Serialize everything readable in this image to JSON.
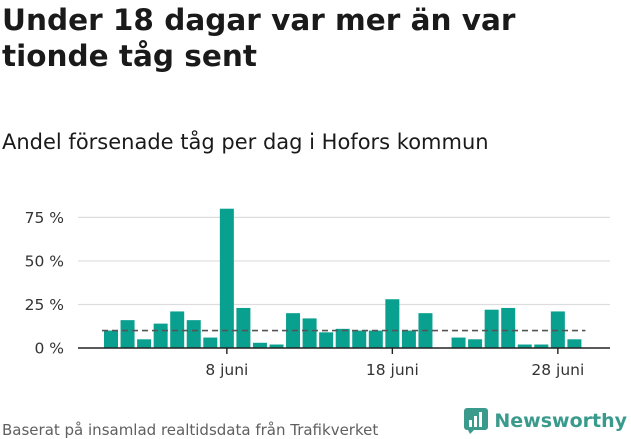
{
  "title": "Under 18 dagar var mer än var tionde tåg sent",
  "subtitle": "Andel försenade tåg per dag i Hofors kommun",
  "source": "Baserat på insamlad realtidsdata från Trafikverket",
  "logo": {
    "text": "Newsworthy",
    "color": "#3a9a8c"
  },
  "colors": {
    "bar": "#0aa090",
    "grid": "#dddddd",
    "axis": "#222222",
    "reference": "#555555"
  },
  "chart_data": {
    "type": "bar",
    "x": [
      "1 juni",
      "2 juni",
      "3 juni",
      "4 juni",
      "5 juni",
      "6 juni",
      "7 juni",
      "8 juni",
      "9 juni",
      "10 juni",
      "11 juni",
      "12 juni",
      "13 juni",
      "14 juni",
      "15 juni",
      "16 juni",
      "17 juni",
      "18 juni",
      "19 juni",
      "20 juni",
      "21 juni",
      "22 juni",
      "23 juni",
      "24 juni",
      "25 juni",
      "26 juni",
      "27 juni",
      "28 juni",
      "29 juni"
    ],
    "values": [
      10,
      16,
      5,
      14,
      21,
      16,
      6,
      80,
      23,
      3,
      2,
      20,
      17,
      9,
      11,
      10,
      10,
      28,
      10,
      20,
      null,
      6,
      5,
      22,
      23,
      2,
      2,
      21,
      5
    ],
    "reference_value": 10,
    "ylim": [
      0,
      85
    ],
    "yticks": [
      0,
      25,
      50,
      75
    ],
    "ytick_labels": [
      "0 %",
      "25 %",
      "50 %",
      "75 %"
    ],
    "xticks": [
      "8 juni",
      "18 juni",
      "28 juni"
    ],
    "grid": true,
    "xlabel": "",
    "ylabel": ""
  }
}
